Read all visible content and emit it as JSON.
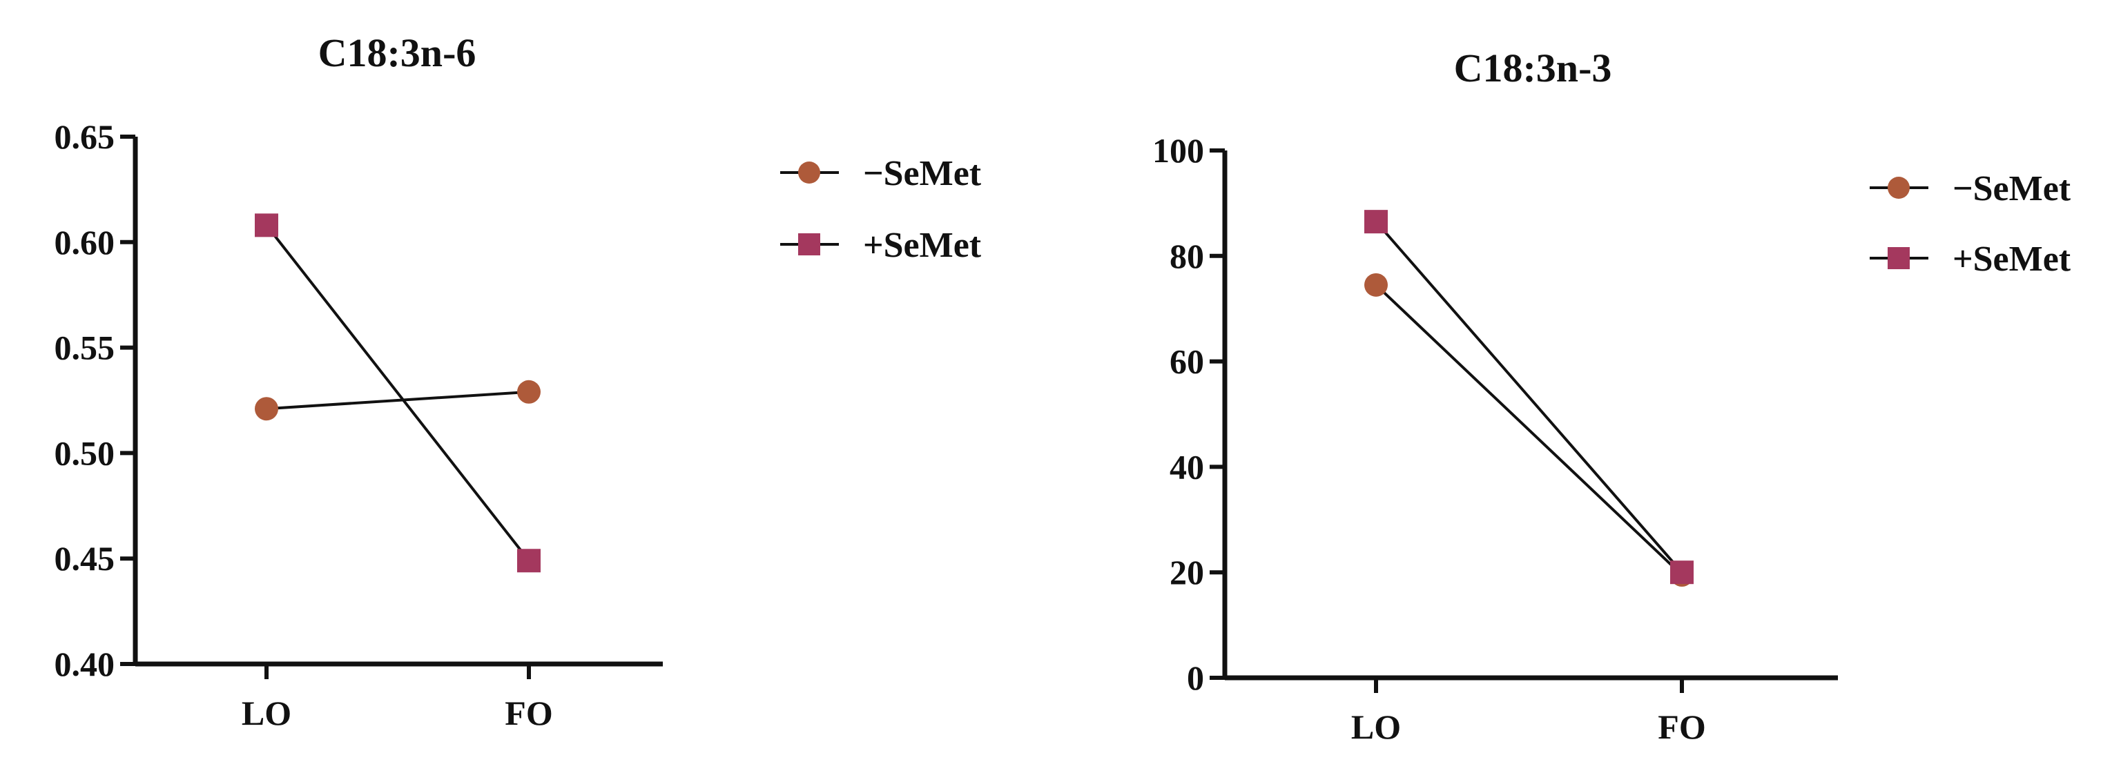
{
  "colors": {
    "minus_semet": "#AE5A3A",
    "plus_semet": "#A4385E",
    "line": "#111111",
    "axis": "#111111"
  },
  "chart_data": [
    {
      "type": "line",
      "title": "C18:3n-6",
      "categories": [
        "LO",
        "FO"
      ],
      "ylim": [
        0.4,
        0.65
      ],
      "yticks": [
        "0.40",
        "0.45",
        "0.50",
        "0.55",
        "0.60",
        "0.65"
      ],
      "xlabel": "",
      "ylabel": "",
      "grid": false,
      "legend": "right",
      "series": [
        {
          "name": "−SeMet",
          "marker": "circle",
          "values": [
            0.521,
            0.529
          ]
        },
        {
          "name": "+SeMet",
          "marker": "square",
          "values": [
            0.608,
            0.449
          ]
        }
      ]
    },
    {
      "type": "line",
      "title": "C18:3n-3",
      "categories": [
        "LO",
        "FO"
      ],
      "ylim": [
        0,
        100
      ],
      "yticks": [
        "0",
        "20",
        "40",
        "60",
        "80",
        "100"
      ],
      "xlabel": "",
      "ylabel": "",
      "grid": false,
      "legend": "right",
      "series": [
        {
          "name": "−SeMet",
          "marker": "circle",
          "values": [
            74.5,
            19.5
          ]
        },
        {
          "name": "+SeMet",
          "marker": "square",
          "values": [
            86.5,
            20.0
          ]
        }
      ]
    }
  ]
}
